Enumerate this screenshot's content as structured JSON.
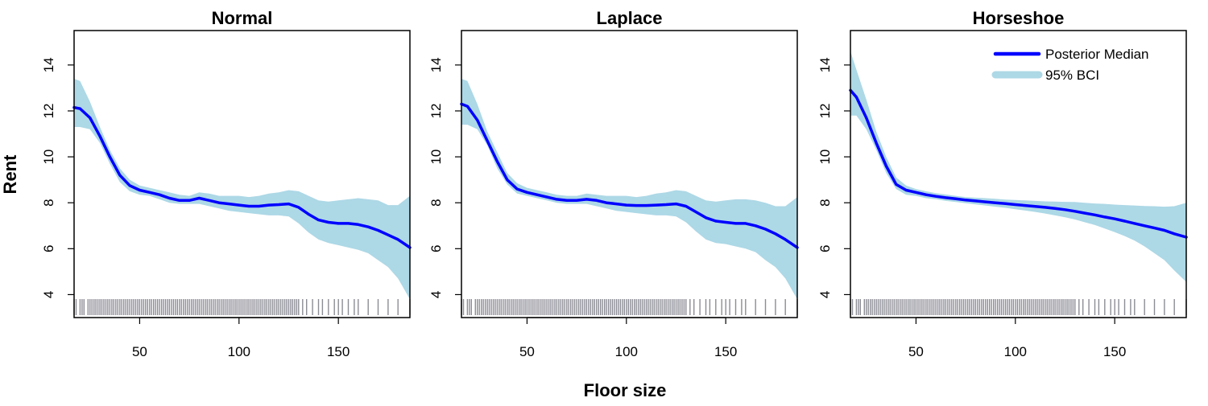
{
  "figure": {
    "xlabel": "Floor size",
    "ylabel": "Rent"
  },
  "colors": {
    "median": "#0000ff",
    "band": "#add8e6",
    "rug": "#8c8c96",
    "axis": "#000000"
  },
  "legend": {
    "position": "top-right",
    "panel": 2,
    "entries": [
      {
        "label": "Posterior Median",
        "color": "#0000ff",
        "kind": "line"
      },
      {
        "label": "95% BCI",
        "color": "#add8e6",
        "kind": "band"
      }
    ]
  },
  "chart_data": [
    {
      "type": "line",
      "title": "Normal",
      "xlim": [
        17,
        186
      ],
      "ylim": [
        3.0,
        15.5
      ],
      "xticks": [
        50,
        100,
        150
      ],
      "yticks": [
        4,
        6,
        8,
        10,
        12,
        14
      ],
      "grid": false,
      "series": [
        {
          "name": "Posterior Median",
          "x": [
            17,
            20,
            25,
            30,
            35,
            40,
            45,
            50,
            55,
            60,
            65,
            70,
            75,
            80,
            85,
            90,
            95,
            100,
            105,
            110,
            115,
            120,
            125,
            130,
            135,
            140,
            145,
            150,
            155,
            160,
            165,
            170,
            175,
            180,
            186
          ],
          "y": [
            12.15,
            12.1,
            11.7,
            10.9,
            10.0,
            9.2,
            8.75,
            8.55,
            8.45,
            8.35,
            8.2,
            8.1,
            8.1,
            8.2,
            8.1,
            8.0,
            7.95,
            7.9,
            7.85,
            7.85,
            7.9,
            7.92,
            7.95,
            7.8,
            7.5,
            7.25,
            7.15,
            7.1,
            7.1,
            7.05,
            6.95,
            6.8,
            6.6,
            6.4,
            6.05
          ]
        },
        {
          "name": "95% BCI",
          "x": [
            17,
            20,
            25,
            30,
            35,
            40,
            45,
            50,
            55,
            60,
            65,
            70,
            75,
            80,
            85,
            90,
            95,
            100,
            105,
            110,
            115,
            120,
            125,
            130,
            135,
            140,
            145,
            150,
            155,
            160,
            165,
            170,
            175,
            180,
            186
          ],
          "lower": [
            11.3,
            11.3,
            11.2,
            10.6,
            9.7,
            8.9,
            8.5,
            8.35,
            8.3,
            8.15,
            8.0,
            7.95,
            7.95,
            7.95,
            7.85,
            7.75,
            7.65,
            7.6,
            7.55,
            7.5,
            7.45,
            7.45,
            7.4,
            7.1,
            6.7,
            6.4,
            6.25,
            6.15,
            6.05,
            5.95,
            5.8,
            5.5,
            5.2,
            4.7,
            3.8
          ],
          "upper": [
            13.4,
            13.3,
            12.4,
            11.3,
            10.3,
            9.5,
            9.0,
            8.75,
            8.65,
            8.55,
            8.45,
            8.35,
            8.3,
            8.45,
            8.4,
            8.3,
            8.3,
            8.3,
            8.25,
            8.3,
            8.4,
            8.45,
            8.55,
            8.5,
            8.3,
            8.1,
            8.05,
            8.1,
            8.15,
            8.2,
            8.15,
            8.1,
            7.9,
            7.9,
            8.3
          ]
        }
      ],
      "rug_x": [
        17,
        18,
        20,
        21,
        22,
        24,
        25,
        26,
        27,
        28,
        29,
        30,
        31,
        32,
        33,
        34,
        35,
        36,
        37,
        38,
        39,
        40,
        41,
        42,
        43,
        44,
        45,
        46,
        47,
        48,
        49,
        50,
        51,
        52,
        53,
        54,
        55,
        56,
        57,
        58,
        59,
        60,
        61,
        62,
        63,
        64,
        65,
        66,
        67,
        68,
        69,
        70,
        71,
        72,
        73,
        74,
        75,
        76,
        77,
        78,
        79,
        80,
        81,
        82,
        83,
        84,
        85,
        86,
        87,
        88,
        89,
        90,
        91,
        92,
        93,
        94,
        95,
        96,
        97,
        98,
        99,
        100,
        101,
        102,
        103,
        104,
        105,
        106,
        107,
        108,
        109,
        110,
        111,
        112,
        113,
        114,
        115,
        116,
        117,
        118,
        119,
        120,
        121,
        122,
        123,
        124,
        125,
        126,
        127,
        128,
        129,
        130,
        132,
        134,
        137,
        140,
        142,
        145,
        148,
        150,
        152,
        155,
        158,
        160,
        165,
        170,
        175,
        180,
        186
      ]
    },
    {
      "type": "line",
      "title": "Laplace",
      "xlim": [
        17,
        186
      ],
      "ylim": [
        3.0,
        15.5
      ],
      "xticks": [
        50,
        100,
        150
      ],
      "yticks": [
        4,
        6,
        8,
        10,
        12,
        14
      ],
      "grid": false,
      "series": [
        {
          "name": "Posterior Median",
          "x": [
            17,
            20,
            25,
            30,
            35,
            40,
            45,
            50,
            55,
            60,
            65,
            70,
            75,
            80,
            85,
            90,
            95,
            100,
            105,
            110,
            115,
            120,
            125,
            130,
            135,
            140,
            145,
            150,
            155,
            160,
            165,
            170,
            175,
            180,
            186
          ],
          "y": [
            12.3,
            12.2,
            11.6,
            10.7,
            9.8,
            9.0,
            8.6,
            8.45,
            8.35,
            8.25,
            8.15,
            8.1,
            8.1,
            8.15,
            8.1,
            8.0,
            7.95,
            7.9,
            7.88,
            7.88,
            7.9,
            7.92,
            7.95,
            7.85,
            7.6,
            7.35,
            7.2,
            7.15,
            7.1,
            7.1,
            7.0,
            6.85,
            6.65,
            6.4,
            6.05
          ]
        },
        {
          "name": "95% BCI",
          "x": [
            17,
            20,
            25,
            30,
            35,
            40,
            45,
            50,
            55,
            60,
            65,
            70,
            75,
            80,
            85,
            90,
            95,
            100,
            105,
            110,
            115,
            120,
            125,
            130,
            135,
            140,
            145,
            150,
            155,
            160,
            165,
            170,
            175,
            180,
            186
          ],
          "lower": [
            11.4,
            11.4,
            11.2,
            10.5,
            9.5,
            8.8,
            8.4,
            8.3,
            8.2,
            8.1,
            8.0,
            7.95,
            7.95,
            7.95,
            7.85,
            7.75,
            7.65,
            7.6,
            7.55,
            7.5,
            7.45,
            7.45,
            7.4,
            7.15,
            6.75,
            6.4,
            6.25,
            6.2,
            6.1,
            6.0,
            5.85,
            5.5,
            5.2,
            4.7,
            3.8
          ],
          "upper": [
            13.4,
            13.3,
            12.3,
            11.1,
            10.2,
            9.3,
            8.85,
            8.65,
            8.55,
            8.45,
            8.35,
            8.3,
            8.3,
            8.4,
            8.35,
            8.3,
            8.3,
            8.3,
            8.25,
            8.3,
            8.4,
            8.45,
            8.55,
            8.5,
            8.3,
            8.1,
            8.05,
            8.1,
            8.15,
            8.15,
            8.1,
            8.0,
            7.85,
            7.85,
            8.25
          ]
        }
      ],
      "rug_x": [
        17,
        18,
        20,
        21,
        22,
        24,
        25,
        26,
        27,
        28,
        29,
        30,
        31,
        32,
        33,
        34,
        35,
        36,
        37,
        38,
        39,
        40,
        41,
        42,
        43,
        44,
        45,
        46,
        47,
        48,
        49,
        50,
        51,
        52,
        53,
        54,
        55,
        56,
        57,
        58,
        59,
        60,
        61,
        62,
        63,
        64,
        65,
        66,
        67,
        68,
        69,
        70,
        71,
        72,
        73,
        74,
        75,
        76,
        77,
        78,
        79,
        80,
        81,
        82,
        83,
        84,
        85,
        86,
        87,
        88,
        89,
        90,
        91,
        92,
        93,
        94,
        95,
        96,
        97,
        98,
        99,
        100,
        101,
        102,
        103,
        104,
        105,
        106,
        107,
        108,
        109,
        110,
        111,
        112,
        113,
        114,
        115,
        116,
        117,
        118,
        119,
        120,
        121,
        122,
        123,
        124,
        125,
        126,
        127,
        128,
        129,
        130,
        132,
        134,
        137,
        140,
        142,
        145,
        148,
        150,
        152,
        155,
        158,
        160,
        165,
        170,
        175,
        180,
        186
      ]
    },
    {
      "type": "line",
      "title": "Horseshoe",
      "xlim": [
        17,
        186
      ],
      "ylim": [
        3.0,
        15.5
      ],
      "xticks": [
        50,
        100,
        150
      ],
      "yticks": [
        4,
        6,
        8,
        10,
        12,
        14
      ],
      "grid": false,
      "series": [
        {
          "name": "Posterior Median",
          "x": [
            17,
            20,
            25,
            30,
            35,
            40,
            45,
            50,
            55,
            60,
            65,
            70,
            75,
            80,
            85,
            90,
            95,
            100,
            105,
            110,
            115,
            120,
            125,
            130,
            135,
            140,
            145,
            150,
            155,
            160,
            165,
            170,
            175,
            180,
            186
          ],
          "y": [
            12.9,
            12.6,
            11.7,
            10.6,
            9.6,
            8.8,
            8.55,
            8.45,
            8.35,
            8.28,
            8.22,
            8.17,
            8.12,
            8.08,
            8.04,
            8.0,
            7.96,
            7.92,
            7.88,
            7.84,
            7.8,
            7.75,
            7.7,
            7.63,
            7.55,
            7.47,
            7.38,
            7.3,
            7.2,
            7.1,
            7.0,
            6.9,
            6.8,
            6.65,
            6.5
          ]
        },
        {
          "name": "95% BCI",
          "x": [
            17,
            20,
            25,
            30,
            35,
            40,
            45,
            50,
            55,
            60,
            65,
            70,
            75,
            80,
            85,
            90,
            95,
            100,
            105,
            110,
            115,
            120,
            125,
            130,
            135,
            140,
            145,
            150,
            155,
            160,
            165,
            170,
            175,
            180,
            186
          ],
          "lower": [
            11.8,
            11.8,
            11.2,
            10.3,
            9.3,
            8.6,
            8.35,
            8.3,
            8.2,
            8.15,
            8.08,
            8.03,
            7.98,
            7.93,
            7.88,
            7.83,
            7.78,
            7.72,
            7.66,
            7.6,
            7.53,
            7.45,
            7.37,
            7.27,
            7.15,
            7.03,
            6.88,
            6.72,
            6.55,
            6.35,
            6.1,
            5.8,
            5.5,
            5.05,
            4.55
          ],
          "upper": [
            14.6,
            13.8,
            12.5,
            11.1,
            10.0,
            9.1,
            8.75,
            8.6,
            8.5,
            8.42,
            8.36,
            8.3,
            8.25,
            8.22,
            8.2,
            8.17,
            8.14,
            8.12,
            8.1,
            8.08,
            8.06,
            8.05,
            8.04,
            8.03,
            8.0,
            7.97,
            7.95,
            7.92,
            7.9,
            7.88,
            7.86,
            7.85,
            7.83,
            7.85,
            8.0
          ]
        }
      ],
      "rug_x": [
        17,
        18,
        20,
        21,
        22,
        24,
        25,
        26,
        27,
        28,
        29,
        30,
        31,
        32,
        33,
        34,
        35,
        36,
        37,
        38,
        39,
        40,
        41,
        42,
        43,
        44,
        45,
        46,
        47,
        48,
        49,
        50,
        51,
        52,
        53,
        54,
        55,
        56,
        57,
        58,
        59,
        60,
        61,
        62,
        63,
        64,
        65,
        66,
        67,
        68,
        69,
        70,
        71,
        72,
        73,
        74,
        75,
        76,
        77,
        78,
        79,
        80,
        81,
        82,
        83,
        84,
        85,
        86,
        87,
        88,
        89,
        90,
        91,
        92,
        93,
        94,
        95,
        96,
        97,
        98,
        99,
        100,
        101,
        102,
        103,
        104,
        105,
        106,
        107,
        108,
        109,
        110,
        111,
        112,
        113,
        114,
        115,
        116,
        117,
        118,
        119,
        120,
        121,
        122,
        123,
        124,
        125,
        126,
        127,
        128,
        129,
        130,
        132,
        134,
        137,
        140,
        142,
        145,
        148,
        150,
        152,
        155,
        158,
        160,
        165,
        170,
        175,
        180,
        186
      ]
    }
  ]
}
